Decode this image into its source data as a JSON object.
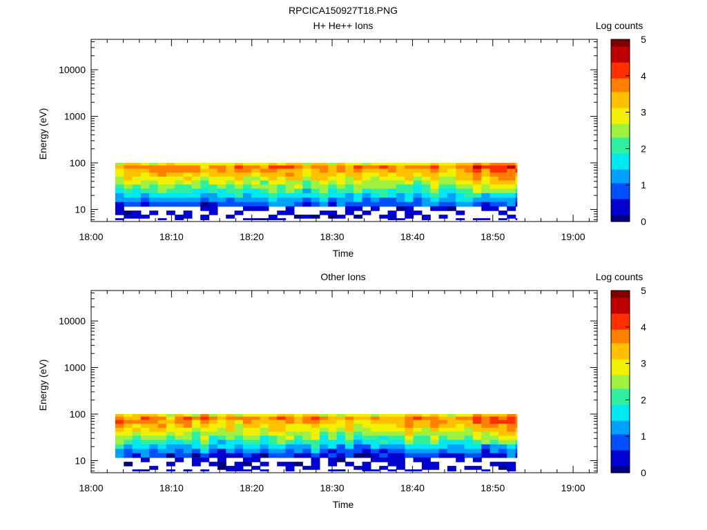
{
  "figure_title": "RPCICA150927T18.PNG",
  "colormap": [
    "#000080",
    "#0000d0",
    "#0050ff",
    "#00a0ff",
    "#00e8f0",
    "#30f0a0",
    "#a0f040",
    "#f0f000",
    "#ffc000",
    "#ff8000",
    "#ff3000",
    "#c00000",
    "#800000"
  ],
  "chart_data": [
    {
      "type": "heatmap",
      "title": "H+ He++ Ions",
      "xlabel": "Time",
      "ylabel": "Energy (eV)",
      "y_scale": "log",
      "xlim": [
        "18:00",
        "19:03"
      ],
      "ylim": [
        5.5,
        45000
      ],
      "x_ticks": [
        "18:00",
        "18:10",
        "18:20",
        "18:30",
        "18:40",
        "18:50",
        "19:00"
      ],
      "y_ticks": [
        "10",
        "100",
        "1000",
        "10000"
      ],
      "colorbar": {
        "label": "Log counts",
        "range": [
          0,
          5
        ],
        "ticks": [
          "0",
          "1",
          "2",
          "3",
          "4",
          "5"
        ]
      },
      "data_time_range": [
        "18:03",
        "18:53"
      ],
      "data_energy_range": [
        6,
        100
      ],
      "time_step_min": 1.06,
      "profile": [
        {
          "energy_eV": 95,
          "log_counts": 3.0
        },
        {
          "energy_eV": 82,
          "log_counts": 3.7
        },
        {
          "energy_eV": 68,
          "log_counts": 3.5
        },
        {
          "energy_eV": 56,
          "log_counts": 3.2
        },
        {
          "energy_eV": 46,
          "log_counts": 2.9
        },
        {
          "energy_eV": 38,
          "log_counts": 2.6
        },
        {
          "energy_eV": 31,
          "log_counts": 2.3
        },
        {
          "energy_eV": 25,
          "log_counts": 2.0
        },
        {
          "energy_eV": 20,
          "log_counts": 1.6
        },
        {
          "energy_eV": 16,
          "log_counts": 1.2
        },
        {
          "energy_eV": 13,
          "log_counts": 0.8
        },
        {
          "energy_eV": 10.5,
          "log_counts": 0.4
        },
        {
          "energy_eV": 8.5,
          "log_counts": 0.3
        },
        {
          "energy_eV": 7,
          "log_counts": 0.2
        },
        {
          "energy_eV": 6,
          "log_counts": 0.2
        }
      ],
      "late_enhancement": {
        "from": "18:47",
        "delta": 0.5
      }
    },
    {
      "type": "heatmap",
      "title": "Other Ions",
      "xlabel": "Time",
      "ylabel": "Energy (eV)",
      "y_scale": "log",
      "xlim": [
        "18:00",
        "19:03"
      ],
      "ylim": [
        5.5,
        45000
      ],
      "x_ticks": [
        "18:00",
        "18:10",
        "18:20",
        "18:30",
        "18:40",
        "18:50",
        "19:00"
      ],
      "y_ticks": [
        "10",
        "100",
        "1000",
        "10000"
      ],
      "colorbar": {
        "label": "Log counts",
        "range": [
          0,
          5
        ],
        "ticks": [
          "0",
          "1",
          "2",
          "3",
          "4",
          "5"
        ]
      },
      "data_time_range": [
        "18:03",
        "18:53"
      ],
      "data_energy_range": [
        6,
        100
      ],
      "time_step_min": 1.06,
      "profile": [
        {
          "energy_eV": 95,
          "log_counts": 3.0
        },
        {
          "energy_eV": 82,
          "log_counts": 3.6
        },
        {
          "energy_eV": 68,
          "log_counts": 3.5
        },
        {
          "energy_eV": 56,
          "log_counts": 3.2
        },
        {
          "energy_eV": 46,
          "log_counts": 2.9
        },
        {
          "energy_eV": 38,
          "log_counts": 2.6
        },
        {
          "energy_eV": 31,
          "log_counts": 2.3
        },
        {
          "energy_eV": 25,
          "log_counts": 1.9
        },
        {
          "energy_eV": 20,
          "log_counts": 1.5
        },
        {
          "energy_eV": 16,
          "log_counts": 1.0
        },
        {
          "energy_eV": 13,
          "log_counts": 0.6
        },
        {
          "energy_eV": 10.5,
          "log_counts": 0.3
        },
        {
          "energy_eV": 8.5,
          "log_counts": 0.2
        },
        {
          "energy_eV": 7,
          "log_counts": 0.2
        },
        {
          "energy_eV": 6,
          "log_counts": 0.2
        }
      ],
      "late_enhancement": {
        "from": "18:47",
        "delta": 0.5
      }
    }
  ]
}
